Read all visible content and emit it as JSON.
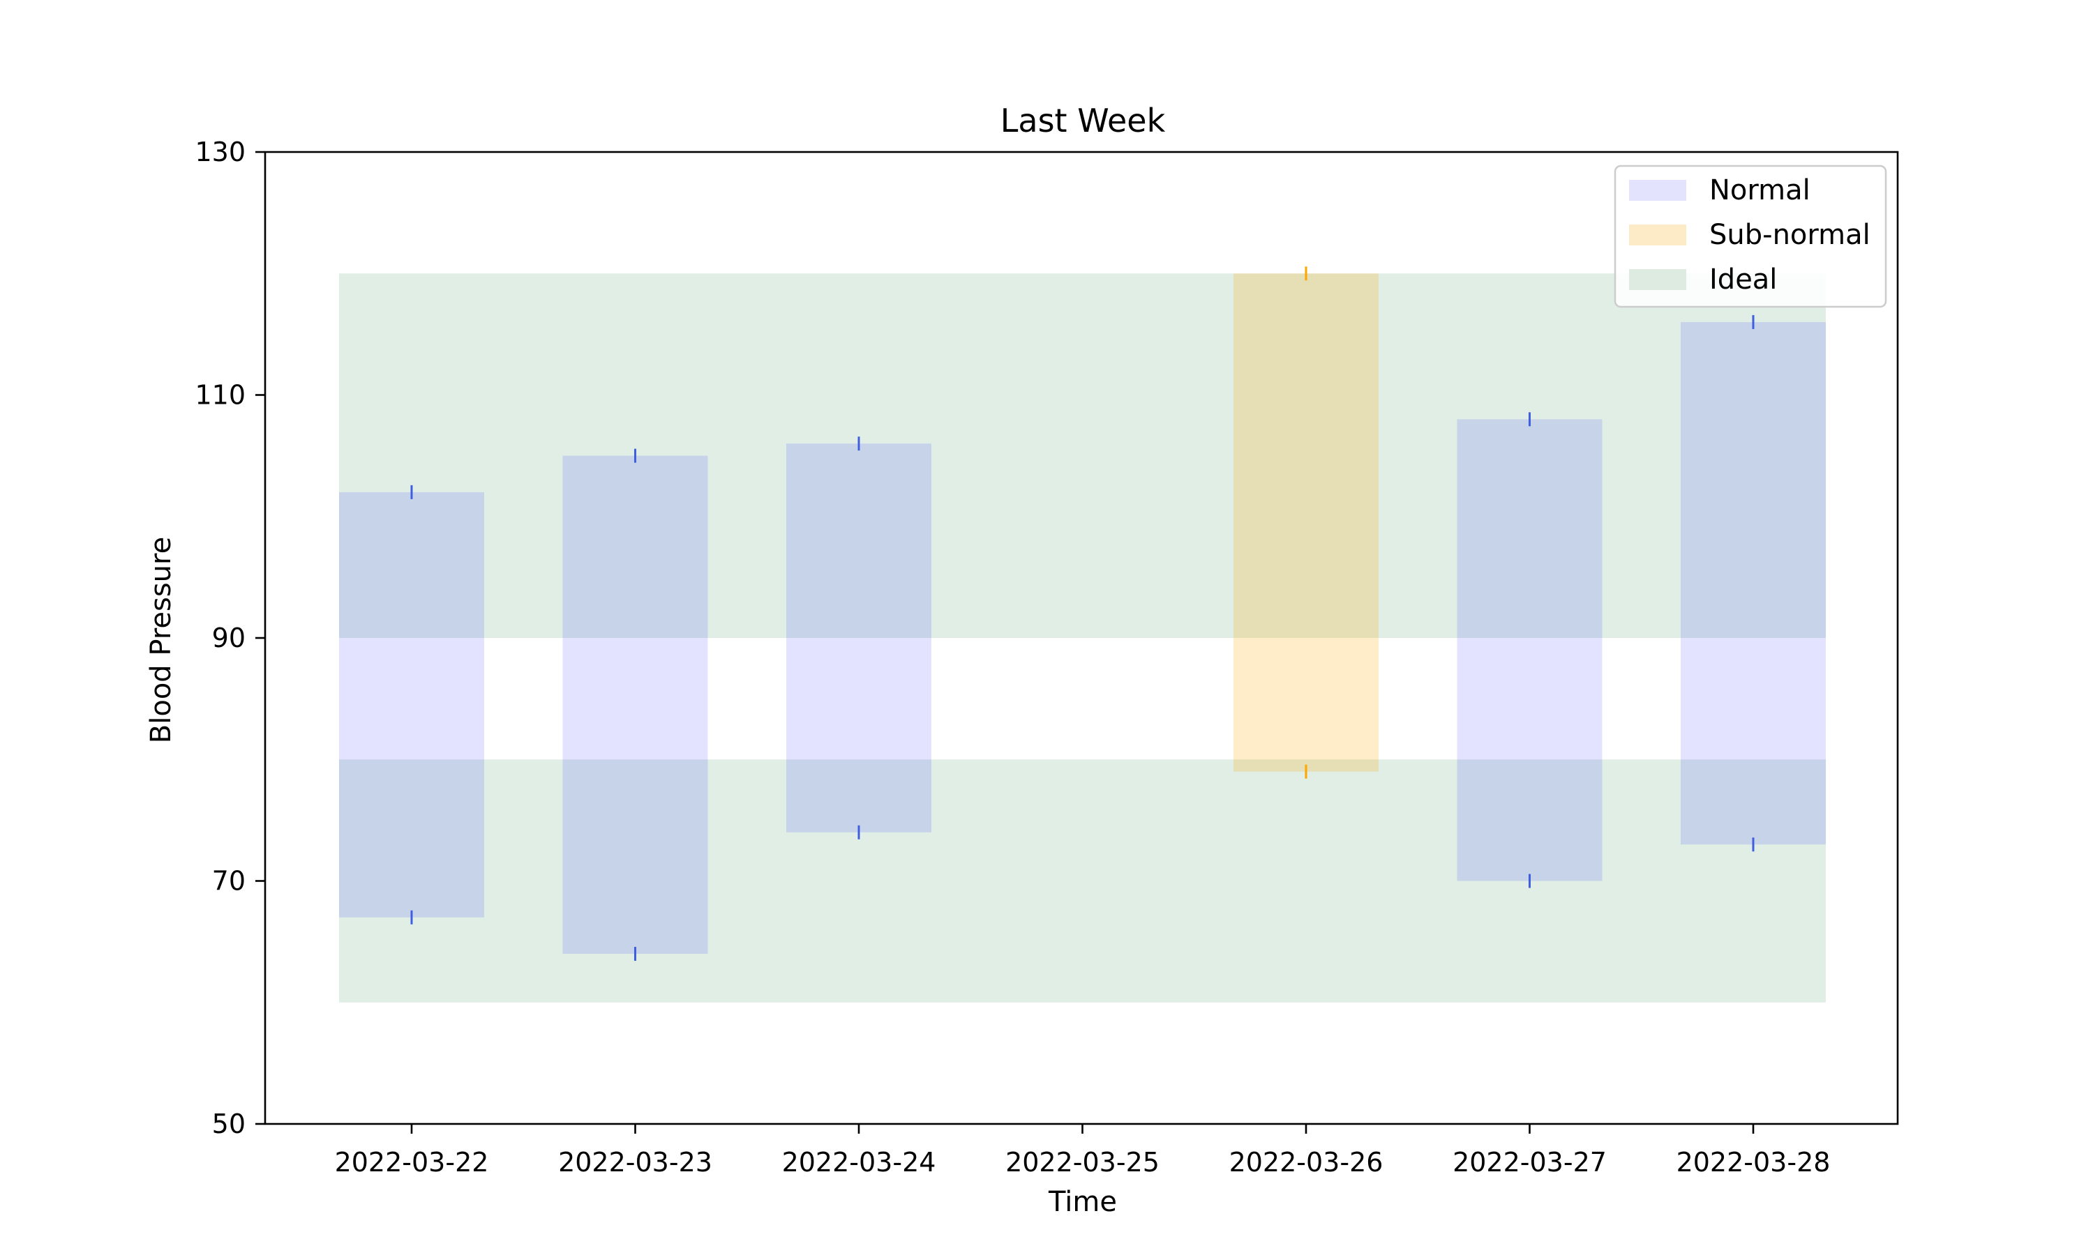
{
  "chart_data": {
    "type": "bar",
    "title": "Last Week",
    "xlabel": "Time",
    "ylabel": "Blood Pressure",
    "ylim": [
      50,
      130
    ],
    "yticks": [
      50,
      70,
      90,
      110,
      130
    ],
    "categories": [
      "2022-03-22",
      "2022-03-23",
      "2022-03-24",
      "2022-03-25",
      "2022-03-26",
      "2022-03-27",
      "2022-03-28"
    ],
    "ideal_band": {
      "name": "Ideal",
      "color": "#2e8b57",
      "y_ranges": [
        [
          60,
          80
        ],
        [
          90,
          120
        ]
      ],
      "x_extent": [
        "2022-03-22",
        "2022-03-28"
      ]
    },
    "readings": [
      {
        "date": "2022-03-22",
        "low": 67,
        "high": 102,
        "category": "Normal"
      },
      {
        "date": "2022-03-23",
        "low": 64,
        "high": 105,
        "category": "Normal"
      },
      {
        "date": "2022-03-24",
        "low": 74,
        "high": 106,
        "category": "Normal"
      },
      {
        "date": "2022-03-26",
        "low": 79,
        "high": 120,
        "category": "Sub-normal"
      },
      {
        "date": "2022-03-27",
        "low": 70,
        "high": 108,
        "category": "Normal"
      },
      {
        "date": "2022-03-28",
        "low": 73,
        "high": 116,
        "category": "Normal"
      }
    ],
    "legend": {
      "position": "upper right",
      "items": [
        {
          "label": "Normal",
          "color": "#e3e3fd"
        },
        {
          "label": "Sub-normal",
          "color": "#fdebc8"
        },
        {
          "label": "Ideal",
          "color": "#deebe1"
        }
      ]
    },
    "colors": {
      "normal_bar": "#0000ff",
      "subnormal_bar": "#ffa500",
      "ideal_band": "#2e8b57",
      "normal_marker": "#3f5fe0",
      "subnormal_marker": "#ffa500"
    }
  }
}
